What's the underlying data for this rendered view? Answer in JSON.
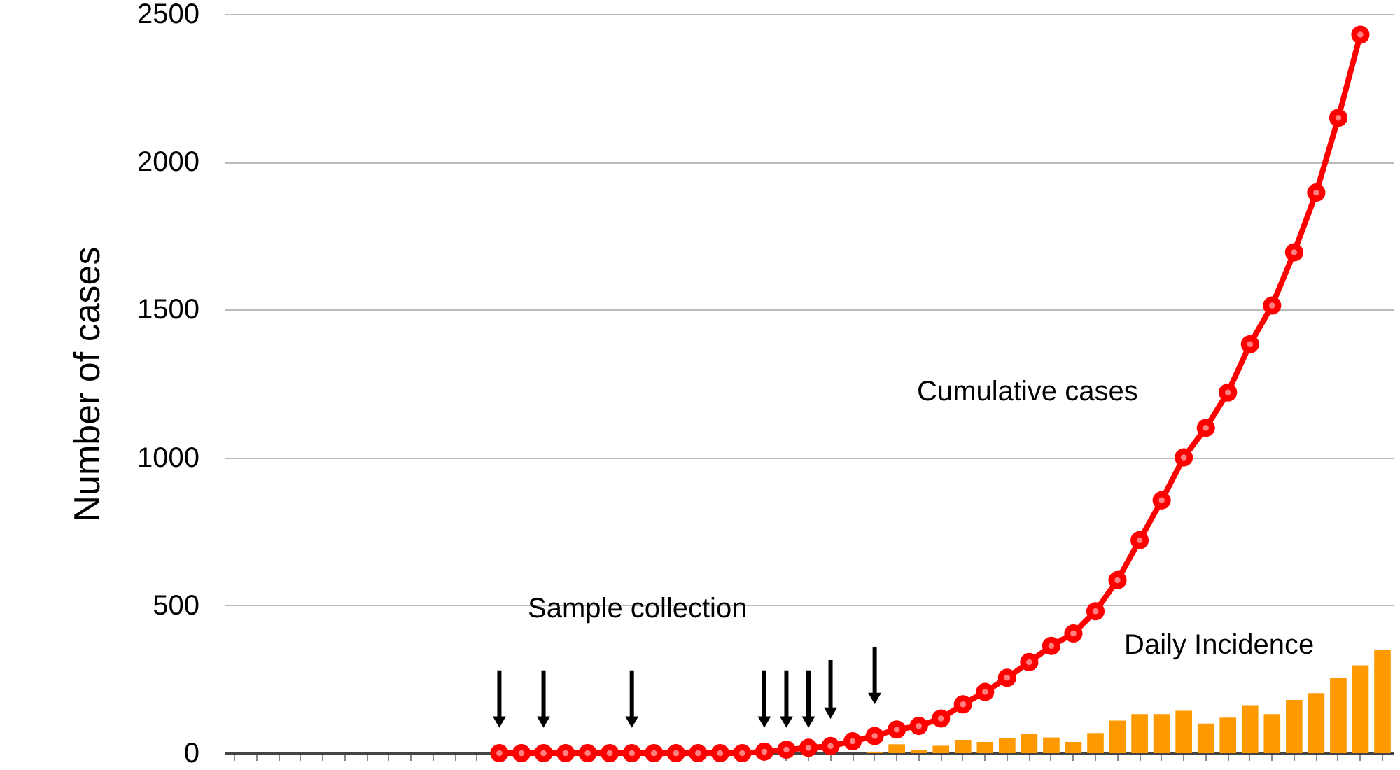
{
  "chart_data": {
    "type": "bar",
    "ylabel": "Number of cases",
    "categories": [
      null,
      null,
      null,
      null,
      null,
      null,
      null,
      null,
      null,
      null,
      null,
      null,
      null,
      null,
      null,
      null,
      null,
      null,
      null,
      null,
      null,
      null,
      null,
      null,
      null,
      null,
      null,
      null,
      null,
      null,
      null,
      null,
      null,
      null,
      null,
      null,
      null,
      null,
      null,
      null,
      null,
      null,
      null,
      null,
      null,
      null,
      null,
      null,
      null,
      null,
      null,
      null,
      null
    ],
    "ylim": [
      0,
      2500
    ],
    "yticks": [
      0,
      500,
      1000,
      1500,
      2000,
      2500
    ],
    "grid": "y",
    "tick_labels": "y",
    "annotations": [
      "Sample collection"
    ],
    "series": [
      {
        "name": "Daily Incidence",
        "color": "#ff9900",
        "values": [
          null,
          null,
          null,
          null,
          null,
          null,
          null,
          null,
          null,
          null,
          null,
          null,
          null,
          null,
          null,
          null,
          null,
          null,
          null,
          null,
          null,
          null,
          null,
          null,
          null,
          null,
          null,
          null,
          null,
          5,
          30,
          10,
          25,
          45,
          38,
          50,
          65,
          53,
          38,
          68,
          110,
          132,
          132,
          143,
          100,
          120,
          162,
          132,
          180,
          203,
          255,
          297,
          350
        ]
      },
      {
        "name": "Cumulative cases",
        "type": "line",
        "color": "#ff0000",
        "marker": "circle",
        "line_style": "solid",
        "values": [
          null,
          null,
          null,
          null,
          null,
          null,
          null,
          null,
          null,
          null,
          null,
          null,
          0,
          0,
          0,
          0,
          0,
          0,
          0,
          0,
          0,
          0,
          0,
          0,
          5,
          12,
          18,
          24,
          40,
          58,
          80,
          92,
          117,
          165,
          207,
          255,
          308,
          363,
          405,
          480,
          585,
          720,
          855,
          1000,
          1100,
          1220,
          1383,
          1514,
          1694,
          1896,
          2149,
          2430,
          null
        ]
      },
      {
        "type": "scatter",
        "color": "#000000",
        "marker": "triangle",
        "values": [
          null,
          null,
          null,
          null,
          null,
          null,
          null,
          null,
          null,
          null,
          null,
          null,
          105,
          null,
          105,
          null,
          null,
          null,
          105,
          null,
          null,
          null,
          null,
          null,
          105,
          105,
          105,
          135,
          null,
          185,
          null,
          null,
          null,
          null,
          null,
          null,
          null,
          null,
          null,
          null,
          null,
          null,
          null,
          null,
          null,
          null,
          null,
          null,
          null,
          null,
          null,
          null,
          null
        ],
        "errors": [
          null,
          null,
          null,
          null,
          null,
          null,
          null,
          null,
          null,
          null,
          null,
          null,
          [
            105,
            280
          ],
          null,
          [
            105,
            280
          ],
          null,
          null,
          null,
          [
            105,
            280
          ],
          null,
          null,
          null,
          null,
          null,
          [
            105,
            280
          ],
          [
            105,
            280
          ],
          [
            105,
            280
          ],
          [
            135,
            315
          ],
          null,
          [
            185,
            360
          ],
          null,
          null,
          null,
          null,
          null,
          null,
          null,
          null,
          null,
          null,
          null,
          null,
          null,
          null,
          null,
          null,
          null,
          null,
          null,
          null,
          null,
          null,
          null
        ]
      }
    ]
  }
}
